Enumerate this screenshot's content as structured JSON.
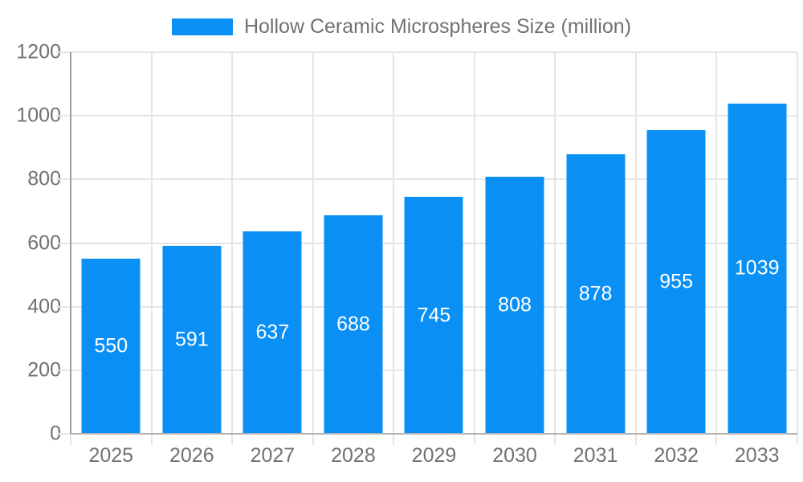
{
  "page": {
    "background_color": "#ffffff"
  },
  "legend": {
    "label": "Hollow Ceramic Microspheres Size (million)",
    "position": "top-center"
  },
  "chart_data": {
    "type": "bar",
    "title": "Hollow Ceramic Microspheres Size (million)",
    "series_name": "Hollow Ceramic Microspheres Size (million)",
    "categories": [
      "2025",
      "2026",
      "2027",
      "2028",
      "2029",
      "2030",
      "2031",
      "2032",
      "2033"
    ],
    "values": [
      550,
      591,
      637,
      688,
      745,
      808,
      878,
      955,
      1039
    ],
    "xlabel": "",
    "ylabel": "",
    "ylim": [
      0,
      1200
    ],
    "yticks": [
      0,
      200,
      400,
      600,
      800,
      1000,
      1200
    ],
    "grid": true,
    "legend_position": "top",
    "value_labels_shown": true,
    "colors": {
      "bar": "#0a90f5",
      "value_label": "#ffffff",
      "axis_label": "#717171",
      "gridline": "#e5e5e5",
      "y_axis_line": "#9e9e9e",
      "x_axis_line": "#b3b3b3",
      "background": "#ffffff"
    }
  }
}
